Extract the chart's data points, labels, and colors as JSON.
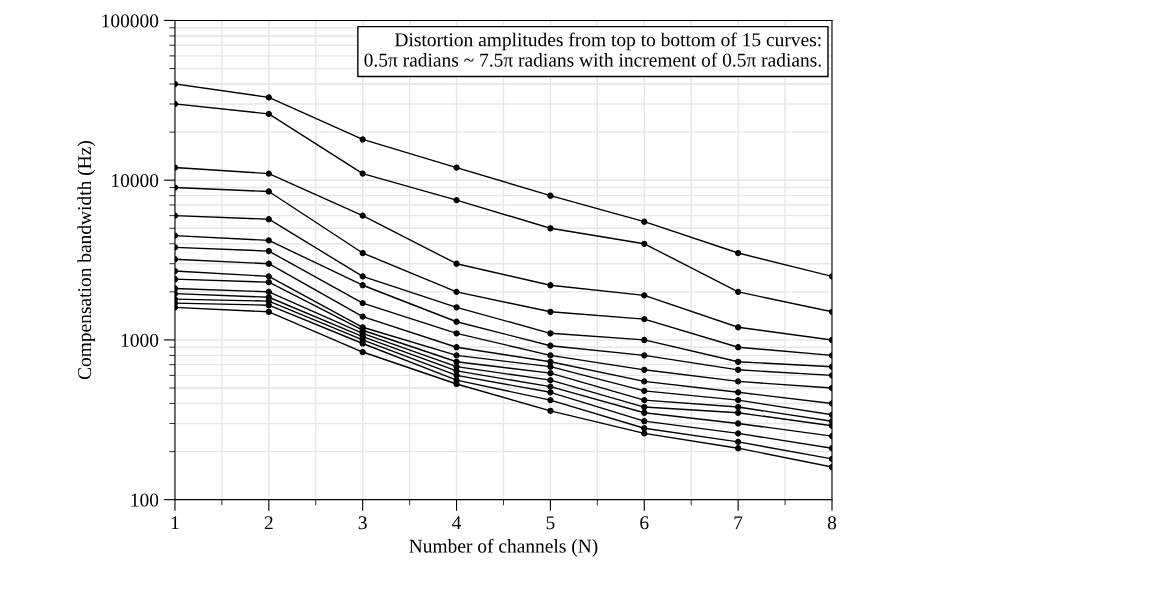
{
  "chart_data": {
    "type": "line",
    "xlabel": "Number of channels (N)",
    "ylabel": "Compensation bandwidth (Hz)",
    "x": [
      1,
      2,
      3,
      4,
      5,
      6,
      7,
      8
    ],
    "series": [
      {
        "color": "#000000",
        "values": [
          40000,
          33000,
          18000,
          12000,
          8000,
          5500,
          3500,
          2500
        ]
      },
      {
        "color": "#000000",
        "values": [
          30000,
          26000,
          11000,
          7500,
          5000,
          4000,
          2000,
          1500
        ]
      },
      {
        "color": "#000000",
        "values": [
          12000,
          11000,
          6000,
          3000,
          2200,
          1900,
          1200,
          1000
        ]
      },
      {
        "color": "#000000",
        "values": [
          9000,
          8500,
          3500,
          2000,
          1500,
          1350,
          900,
          800
        ]
      },
      {
        "color": "#000000",
        "values": [
          6000,
          5700,
          2500,
          1600,
          1100,
          1000,
          730,
          680
        ]
      },
      {
        "color": "#000000",
        "values": [
          4500,
          4200,
          2200,
          1300,
          920,
          800,
          650,
          600
        ]
      },
      {
        "color": "#000000",
        "values": [
          3800,
          3600,
          1700,
          1100,
          800,
          650,
          550,
          500
        ]
      },
      {
        "color": "#000000",
        "values": [
          3200,
          3000,
          1400,
          900,
          730,
          550,
          470,
          400
        ]
      },
      {
        "color": "#000000",
        "values": [
          2700,
          2500,
          1200,
          800,
          680,
          480,
          420,
          340
        ]
      },
      {
        "color": "#000000",
        "values": [
          2400,
          2300,
          1150,
          730,
          620,
          420,
          380,
          310
        ]
      },
      {
        "color": "#000000",
        "values": [
          2100,
          2000,
          1100,
          680,
          560,
          380,
          350,
          290
        ]
      },
      {
        "color": "#000000",
        "values": [
          1950,
          1850,
          1050,
          640,
          510,
          350,
          300,
          250
        ]
      },
      {
        "color": "#000000",
        "values": [
          1800,
          1750,
          1000,
          600,
          470,
          310,
          260,
          210
        ]
      },
      {
        "color": "#000000",
        "values": [
          1700,
          1650,
          950,
          560,
          420,
          280,
          230,
          180
        ]
      },
      {
        "color": "#000000",
        "values": [
          1600,
          1500,
          840,
          530,
          360,
          260,
          210,
          160
        ]
      }
    ],
    "xlim": [
      1,
      8
    ],
    "xticks": [
      1,
      2,
      3,
      4,
      5,
      6,
      7,
      8
    ],
    "ylim": [
      100,
      100000
    ],
    "yticks": [
      100,
      1000,
      10000,
      100000
    ],
    "log": "y",
    "grid": true,
    "marker": "circle",
    "line_style": "solid",
    "legend": false,
    "annotations": [
      "Distortion amplitudes from top to bottom of 15 curves:\n0.5π radians ~ 7.5π radians with increment of 0.5π radians."
    ]
  }
}
